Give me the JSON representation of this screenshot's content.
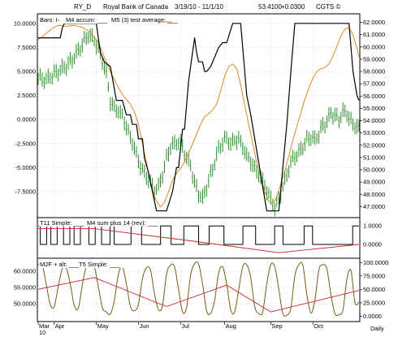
{
  "header": {
    "symbol": "RY_D",
    "company": "Royal Bank of Canada",
    "date_range": "3/19/10 - 11/1/10",
    "last_price": "53.4100",
    "change": "+0.0300",
    "copyright": "CGTS ©"
  },
  "footer": {
    "period_label": "Daily"
  },
  "colors": {
    "bars": "#2e8b2e",
    "accum": "#000000",
    "average": "#e08a1e",
    "zero_ref": "#d02020",
    "osc": "#7a5a14",
    "grid": "#b8b8b8"
  },
  "chart_data": [
    {
      "panel": "price",
      "type": "line",
      "legend": [
        "Bars: I-",
        "M4 accum: ___",
        "M5 (3) test average: ___"
      ],
      "left_axis": {
        "ticks": [
          "10.0000",
          "7.5000",
          "5.0000",
          "2.5000",
          "0.0000",
          "-2.5000",
          "-5.0000",
          "-7.5000"
        ],
        "ylim": [
          -10.2,
          11.0
        ]
      },
      "right_axis": {
        "ticks": [
          "62.0000",
          "61.0000",
          "60.0000",
          "59.0000",
          "58.0000",
          "57.0000",
          "56.0000",
          "55.0000",
          "54.0000",
          "53.0000",
          "52.0000",
          "51.0000",
          "50.0000",
          "49.0000",
          "48.0000",
          "47.0000"
        ],
        "ylim": [
          46.1,
          62.7
        ]
      },
      "grid": true,
      "xlim": [
        0,
        160
      ],
      "price_anchors": [
        [
          0,
          57.5
        ],
        [
          4,
          57.3
        ],
        [
          8,
          57.8
        ],
        [
          12,
          58.2
        ],
        [
          15,
          58.6
        ],
        [
          18,
          59.2
        ],
        [
          22,
          60.2
        ],
        [
          25,
          61.0
        ],
        [
          28,
          60.6
        ],
        [
          31,
          59.4
        ],
        [
          34,
          57.8
        ],
        [
          36,
          55.6
        ],
        [
          38,
          55.0
        ],
        [
          40,
          54.8
        ],
        [
          42,
          54.4
        ],
        [
          44,
          53.5
        ],
        [
          46,
          52.6
        ],
        [
          48,
          51.8
        ],
        [
          50,
          50.7
        ],
        [
          52,
          50.0
        ],
        [
          54,
          49.4
        ],
        [
          56,
          49.0
        ],
        [
          58,
          48.3
        ],
        [
          60,
          48.6
        ],
        [
          62,
          49.6
        ],
        [
          64,
          50.9
        ],
        [
          66,
          51.9
        ],
        [
          68,
          52.1
        ],
        [
          70,
          52.3
        ],
        [
          72,
          51.9
        ],
        [
          74,
          50.9
        ],
        [
          76,
          50.4
        ],
        [
          78,
          48.9
        ],
        [
          80,
          48.1
        ],
        [
          82,
          47.6
        ],
        [
          84,
          48.6
        ],
        [
          86,
          49.6
        ],
        [
          88,
          50.6
        ],
        [
          90,
          51.7
        ],
        [
          92,
          52.2
        ],
        [
          94,
          52.6
        ],
        [
          96,
          52.1
        ],
        [
          98,
          52.4
        ],
        [
          100,
          52.5
        ],
        [
          102,
          51.9
        ],
        [
          104,
          51.1
        ],
        [
          106,
          50.7
        ],
        [
          108,
          50.1
        ],
        [
          110,
          49.6
        ],
        [
          112,
          49.1
        ],
        [
          114,
          48.3
        ],
        [
          116,
          47.6
        ],
        [
          118,
          46.9
        ],
        [
          120,
          47.6
        ],
        [
          122,
          48.6
        ],
        [
          124,
          49.6
        ],
        [
          126,
          50.6
        ],
        [
          128,
          51.1
        ],
        [
          130,
          51.4
        ],
        [
          132,
          51.9
        ],
        [
          134,
          52.4
        ],
        [
          136,
          52.7
        ],
        [
          138,
          52.4
        ],
        [
          140,
          52.9
        ],
        [
          142,
          53.6
        ],
        [
          144,
          53.9
        ],
        [
          146,
          54.6
        ],
        [
          148,
          54.4
        ],
        [
          150,
          54.1
        ],
        [
          152,
          54.7
        ],
        [
          154,
          54.6
        ],
        [
          156,
          53.9
        ],
        [
          158,
          53.6
        ],
        [
          160,
          53.4
        ]
      ],
      "bar_range": 0.55,
      "accum_series": [
        [
          0,
          8.5
        ],
        [
          11,
          8.5
        ],
        [
          12,
          9.5
        ],
        [
          13,
          10.0
        ],
        [
          29,
          10.0
        ],
        [
          31,
          7.0
        ],
        [
          33,
          6.0
        ],
        [
          36,
          5.5
        ],
        [
          39,
          2.0
        ],
        [
          42,
          2.0
        ],
        [
          44,
          0.5
        ],
        [
          46,
          0.5
        ],
        [
          47,
          -0.5
        ],
        [
          49,
          -0.5
        ],
        [
          50,
          -2.0
        ],
        [
          52,
          -2.0
        ],
        [
          53,
          -4.0
        ],
        [
          55,
          -5.5
        ],
        [
          57,
          -7.5
        ],
        [
          59,
          -9.5
        ],
        [
          64,
          -9.5
        ],
        [
          67,
          -7.5
        ],
        [
          69,
          -5.0
        ],
        [
          70,
          -5.0
        ],
        [
          72,
          -1.0
        ],
        [
          73,
          -1.0
        ],
        [
          75,
          4.0
        ],
        [
          77,
          7.0
        ],
        [
          78,
          8.5
        ],
        [
          79,
          7.0
        ],
        [
          80,
          6.0
        ],
        [
          82,
          6.0
        ],
        [
          83,
          5.0
        ],
        [
          84,
          5.0
        ],
        [
          86,
          5.5
        ],
        [
          88,
          6.5
        ],
        [
          90,
          7.5
        ],
        [
          92,
          8.0
        ],
        [
          94,
          8.0
        ],
        [
          97,
          10.0
        ],
        [
          101,
          10.0
        ],
        [
          103,
          5.0
        ],
        [
          104,
          2.5
        ],
        [
          106,
          0.5
        ],
        [
          108,
          -2.0
        ],
        [
          110,
          -4.5
        ],
        [
          112,
          -7.0
        ],
        [
          114,
          -9.5
        ],
        [
          120,
          -9.5
        ],
        [
          122,
          -5.0
        ],
        [
          124,
          -0.5
        ],
        [
          126,
          5.0
        ],
        [
          128,
          10.0
        ],
        [
          155,
          10.0
        ],
        [
          157,
          5.0
        ],
        [
          159,
          2.5
        ],
        [
          160,
          2.0
        ]
      ],
      "average_series": [
        [
          0,
          8.3
        ],
        [
          3,
          8.8
        ],
        [
          6,
          9.3
        ],
        [
          8,
          9.6
        ],
        [
          10,
          9.8
        ],
        [
          14,
          9.7
        ],
        [
          18,
          9.8
        ],
        [
          22,
          9.6
        ],
        [
          26,
          9.1
        ],
        [
          30,
          8.0
        ],
        [
          33,
          6.5
        ],
        [
          36,
          5.0
        ],
        [
          39,
          3.7
        ],
        [
          42,
          2.6
        ],
        [
          44,
          2.1
        ],
        [
          46,
          1.6
        ],
        [
          48,
          0.8
        ],
        [
          50,
          -0.5
        ],
        [
          52,
          -2.5
        ],
        [
          54,
          -4.5
        ],
        [
          56,
          -6.5
        ],
        [
          58,
          -8.0
        ],
        [
          60,
          -8.8
        ],
        [
          61,
          -9.1
        ],
        [
          63,
          -8.6
        ],
        [
          65,
          -7.5
        ],
        [
          67,
          -6.3
        ],
        [
          69,
          -5.6
        ],
        [
          71,
          -5.1
        ],
        [
          73,
          -4.4
        ],
        [
          75,
          -3.5
        ],
        [
          77,
          -2.5
        ],
        [
          79,
          -1.5
        ],
        [
          81,
          -0.5
        ],
        [
          83,
          0.3
        ],
        [
          85,
          0.6
        ],
        [
          87,
          1.0
        ],
        [
          89,
          1.6
        ],
        [
          91,
          3.0
        ],
        [
          93,
          4.5
        ],
        [
          95,
          5.5
        ],
        [
          97,
          5.8
        ],
        [
          99,
          5.3
        ],
        [
          101,
          3.6
        ],
        [
          103,
          1.5
        ],
        [
          105,
          -0.5
        ],
        [
          107,
          -2.5
        ],
        [
          109,
          -4.5
        ],
        [
          111,
          -6.0
        ],
        [
          113,
          -7.5
        ],
        [
          115,
          -8.5
        ],
        [
          117,
          -8.8
        ],
        [
          119,
          -8.0
        ],
        [
          121,
          -6.7
        ],
        [
          123,
          -5.3
        ],
        [
          125,
          -3.8
        ],
        [
          127,
          -2.2
        ],
        [
          129,
          -0.7
        ],
        [
          131,
          0.7
        ],
        [
          133,
          2.1
        ],
        [
          135,
          3.3
        ],
        [
          137,
          4.3
        ],
        [
          139,
          5.0
        ],
        [
          141,
          5.3
        ],
        [
          143,
          5.4
        ],
        [
          145,
          5.8
        ],
        [
          147,
          6.6
        ],
        [
          149,
          7.6
        ],
        [
          151,
          8.7
        ],
        [
          153,
          9.4
        ],
        [
          155,
          9.6
        ],
        [
          157,
          8.8
        ],
        [
          159,
          7.4
        ],
        [
          160,
          6.5
        ]
      ]
    },
    {
      "panel": "indicator",
      "type": "line",
      "legend": [
        "T11 Simple: ___",
        "M4 sum plus 14 (rev): ___"
      ],
      "right_axis": {
        "ticks": [
          "1.0000",
          "0.0000"
        ],
        "ylim": [
          -0.75,
          1.45
        ]
      },
      "grid": true,
      "xlim": [
        0,
        160
      ],
      "step_series": [
        1,
        0,
        0,
        0,
        1,
        1,
        0,
        0,
        0,
        1,
        1,
        1,
        0,
        0,
        0,
        1,
        1,
        0,
        0,
        0,
        1,
        1,
        1,
        1,
        0,
        0,
        0,
        1,
        1,
        1,
        0,
        0,
        0,
        0,
        1,
        1,
        0,
        0,
        0,
        0,
        0,
        0,
        0,
        0,
        1,
        1,
        1,
        1,
        1,
        0,
        0,
        0,
        0,
        0,
        0,
        0,
        0,
        0,
        1,
        1,
        1,
        1,
        1,
        0,
        0,
        0,
        0,
        0,
        0,
        1,
        1,
        1,
        1,
        1,
        1,
        1,
        0,
        0,
        0,
        0,
        0,
        1,
        1,
        1,
        1,
        1,
        1,
        1,
        0,
        0,
        0,
        0,
        0,
        0,
        0,
        0,
        0,
        1,
        1,
        1,
        1,
        1,
        1,
        0,
        0,
        0,
        0,
        0,
        0,
        0,
        0,
        0,
        1,
        1,
        1,
        1,
        0,
        0,
        0,
        0,
        0,
        0,
        0,
        0,
        0,
        0,
        1,
        1,
        1,
        1,
        0,
        0,
        0,
        0,
        0,
        0,
        0,
        0,
        0,
        0,
        0,
        0,
        0,
        0,
        0,
        0,
        0,
        0,
        0,
        1,
        1,
        1
      ],
      "zero_line": [
        [
          0,
          0.85
        ],
        [
          28,
          0.85
        ],
        [
          79,
          0.15
        ],
        [
          120,
          -0.45
        ],
        [
          160,
          0.0
        ]
      ]
    },
    {
      "panel": "oscillator",
      "type": "line",
      "legend": [
        "M2F + alt: ___",
        "T5 Simple: ___"
      ],
      "left_axis": {
        "ticks": [
          "60.0000",
          "55.0000",
          "50.0000"
        ],
        "ylim": [
          44.5,
          64.0
        ]
      },
      "right_axis": {
        "ticks": [
          "100.0000",
          "75.0000",
          "50.0000",
          "25.0000",
          "0.0000"
        ],
        "ylim": [
          -10,
          108
        ]
      },
      "grid": true,
      "xlim": [
        0,
        160
      ],
      "osc_series": [
        [
          0,
          96
        ],
        [
          2,
          95
        ],
        [
          4,
          60
        ],
        [
          6,
          22
        ],
        [
          8,
          18
        ],
        [
          10,
          55
        ],
        [
          12,
          88
        ],
        [
          14,
          90
        ],
        [
          16,
          60
        ],
        [
          18,
          20
        ],
        [
          20,
          15
        ],
        [
          22,
          58
        ],
        [
          24,
          93
        ],
        [
          26,
          95
        ],
        [
          28,
          92
        ],
        [
          30,
          55
        ],
        [
          32,
          16
        ],
        [
          34,
          8
        ],
        [
          36,
          4
        ],
        [
          38,
          30
        ],
        [
          40,
          78
        ],
        [
          42,
          92
        ],
        [
          44,
          60
        ],
        [
          46,
          18
        ],
        [
          48,
          10
        ],
        [
          50,
          22
        ],
        [
          52,
          70
        ],
        [
          54,
          90
        ],
        [
          56,
          86
        ],
        [
          58,
          42
        ],
        [
          60,
          12
        ],
        [
          62,
          20
        ],
        [
          64,
          78
        ],
        [
          66,
          95
        ],
        [
          68,
          92
        ],
        [
          70,
          50
        ],
        [
          72,
          8
        ],
        [
          74,
          16
        ],
        [
          76,
          76
        ],
        [
          78,
          98
        ],
        [
          80,
          97
        ],
        [
          82,
          60
        ],
        [
          84,
          10
        ],
        [
          86,
          5
        ],
        [
          88,
          30
        ],
        [
          90,
          80
        ],
        [
          92,
          92
        ],
        [
          94,
          60
        ],
        [
          96,
          12
        ],
        [
          98,
          8
        ],
        [
          100,
          50
        ],
        [
          102,
          92
        ],
        [
          104,
          96
        ],
        [
          106,
          72
        ],
        [
          108,
          18
        ],
        [
          110,
          5
        ],
        [
          112,
          8
        ],
        [
          114,
          60
        ],
        [
          116,
          96
        ],
        [
          118,
          92
        ],
        [
          120,
          50
        ],
        [
          122,
          5
        ],
        [
          124,
          2
        ],
        [
          126,
          15
        ],
        [
          128,
          75
        ],
        [
          130,
          96
        ],
        [
          132,
          95
        ],
        [
          134,
          40
        ],
        [
          136,
          6
        ],
        [
          138,
          30
        ],
        [
          140,
          86
        ],
        [
          142,
          96
        ],
        [
          144,
          88
        ],
        [
          146,
          40
        ],
        [
          148,
          5
        ],
        [
          150,
          3
        ],
        [
          152,
          12
        ],
        [
          154,
          70
        ],
        [
          156,
          85
        ],
        [
          158,
          25
        ],
        [
          160,
          26
        ]
      ],
      "trend_line": [
        [
          0,
          50
        ],
        [
          28,
          72
        ],
        [
          64,
          18
        ],
        [
          94,
          58
        ],
        [
          116,
          8
        ],
        [
          160,
          48
        ]
      ]
    }
  ],
  "x_axis": {
    "months": [
      {
        "label": "Mar",
        "x": 0
      },
      {
        "label": "Apr",
        "x": 8
      },
      {
        "label": "May",
        "x": 29
      },
      {
        "label": "Jun",
        "x": 50
      },
      {
        "label": "Jul",
        "x": 71
      },
      {
        "label": "Aug",
        "x": 93
      },
      {
        "label": "Sep",
        "x": 116
      },
      {
        "label": "Oct",
        "x": 137
      }
    ],
    "year_label": "10"
  }
}
